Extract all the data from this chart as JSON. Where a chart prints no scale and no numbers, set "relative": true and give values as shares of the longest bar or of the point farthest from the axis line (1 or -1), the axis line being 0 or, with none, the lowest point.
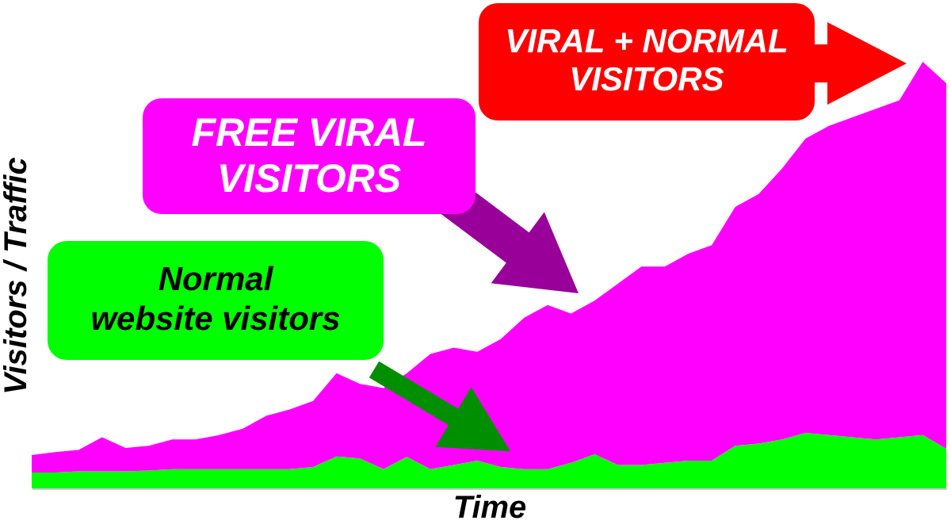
{
  "chart_data": {
    "type": "area",
    "stacked": true,
    "relative": true,
    "xlabel": "Time",
    "ylabel": "Visitors / Traffic",
    "categories": [
      null,
      null,
      null,
      null,
      null,
      null,
      null,
      null,
      null,
      null,
      null,
      null,
      null,
      null,
      null,
      null,
      null,
      null,
      null,
      null,
      null,
      null,
      null,
      null,
      null,
      null,
      null,
      null,
      null,
      null,
      null,
      null,
      null,
      null,
      null,
      null,
      null,
      null,
      null,
      null
    ],
    "series": [
      {
        "color": "#00ff00",
        "values": [
          0.037,
          0.037,
          0.04,
          0.04,
          0.04,
          0.042,
          0.045,
          0.045,
          0.045,
          0.045,
          0.045,
          0.045,
          0.05,
          0.075,
          0.07,
          0.045,
          0.074,
          0.045,
          0.055,
          0.065,
          0.05,
          0.045,
          0.045,
          0.06,
          0.08,
          0.055,
          0.055,
          0.06,
          0.065,
          0.065,
          0.1,
          0.105,
          0.115,
          0.13,
          0.125,
          0.12,
          0.115,
          0.12,
          0.125,
          0.093
        ]
      },
      {
        "color": "#ff00ff",
        "values": [
          0.041,
          0.048,
          0.05,
          0.08,
          0.055,
          0.058,
          0.07,
          0.07,
          0.08,
          0.095,
          0.125,
          0.14,
          0.155,
          0.195,
          0.175,
          0.19,
          0.196,
          0.27,
          0.275,
          0.255,
          0.3,
          0.355,
          0.385,
          0.35,
          0.36,
          0.425,
          0.465,
          0.46,
          0.485,
          0.505,
          0.56,
          0.585,
          0.635,
          0.69,
          0.725,
          0.75,
          0.775,
          0.79,
          0.875,
          0.857
        ]
      }
    ],
    "annotations": [
      "Normal\nwebsite visitors",
      "FREE VIRAL\nVISITORS",
      "VIRAL + NORMAL\nVISITORS"
    ]
  }
}
